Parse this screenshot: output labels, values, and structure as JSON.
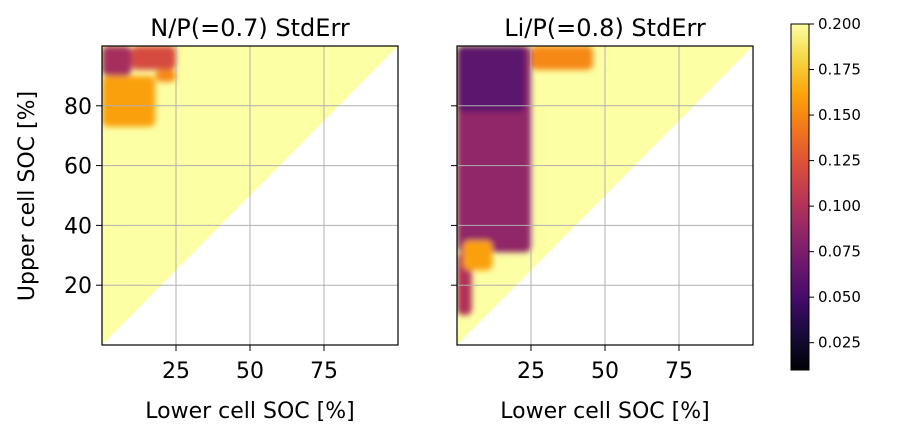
{
  "chart_data": [
    {
      "type": "heatmap",
      "title": "N/P(=0.7) StdErr",
      "xlabel": "Lower cell SOC [%]",
      "ylabel": "Upper cell SOC [%]",
      "xlim": [
        0,
        100
      ],
      "ylim": [
        0,
        100
      ],
      "xticks": [
        "25",
        "50",
        "75"
      ],
      "yticks": [
        "20",
        "40",
        "60",
        "80"
      ],
      "grid": true,
      "valid_region": "upper SOC > lower SOC",
      "default_value": 0.2,
      "regions": [
        {
          "x": [
            0,
            10
          ],
          "y": [
            90,
            100
          ],
          "value": 0.095
        },
        {
          "x": [
            10,
            25
          ],
          "y": [
            92,
            100
          ],
          "value": 0.12
        },
        {
          "x": [
            0,
            18
          ],
          "y": [
            73,
            90
          ],
          "value": 0.16
        },
        {
          "x": [
            18,
            25
          ],
          "y": [
            88,
            92
          ],
          "value": 0.15
        }
      ]
    },
    {
      "type": "heatmap",
      "title": "Li/P(=0.8) StdErr",
      "xlabel": "Lower cell SOC [%]",
      "ylabel": "",
      "xlim": [
        0,
        100
      ],
      "ylim": [
        0,
        100
      ],
      "xticks": [
        "25",
        "50",
        "75"
      ],
      "yticks": [],
      "grid": true,
      "valid_region": "upper SOC > lower SOC",
      "default_value": 0.2,
      "regions": [
        {
          "x": [
            25,
            46
          ],
          "y": [
            92,
            100
          ],
          "value": 0.15
        },
        {
          "x": [
            0,
            25
          ],
          "y": [
            31,
            100
          ],
          "value": 0.085
        },
        {
          "x": [
            0,
            23
          ],
          "y": [
            78,
            100
          ],
          "value": 0.06
        },
        {
          "x": [
            0,
            5
          ],
          "y": [
            10,
            31
          ],
          "value": 0.1
        },
        {
          "x": [
            2,
            12
          ],
          "y": [
            25,
            35
          ],
          "value": 0.16
        }
      ]
    }
  ],
  "colorbar": {
    "colormap": "inferno",
    "min": 0.01,
    "max": 0.2,
    "ticks": [
      0.025,
      0.05,
      0.075,
      0.1,
      0.125,
      0.15,
      0.175,
      0.2
    ],
    "tick_labels": [
      "0.025",
      "0.050",
      "0.075",
      "0.100",
      "0.125",
      "0.150",
      "0.175",
      "0.200"
    ]
  }
}
